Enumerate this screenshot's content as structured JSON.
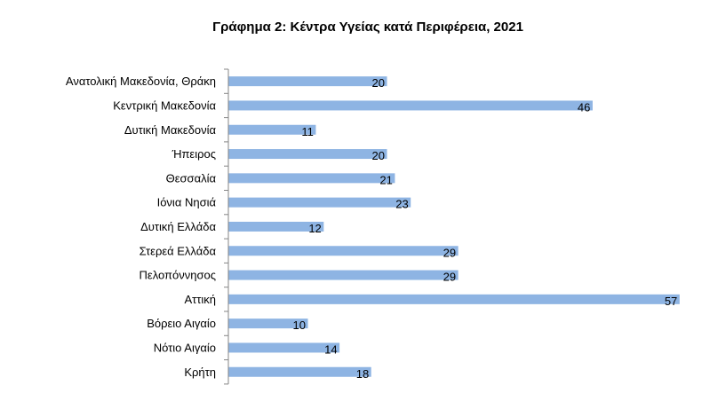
{
  "chart_data": {
    "type": "bar",
    "orientation": "horizontal",
    "title": "Γράφημα 2: Κέντρα Υγείας κατά Περιφέρεια, 2021",
    "categories": [
      "Ανατολική Μακεδονία, Θράκη",
      "Κεντρική Μακεδονία",
      "Δυτική Μακεδονία",
      "Ήπειρος",
      "Θεσσαλία",
      "Ιόνια Νησιά",
      "Δυτική Ελλάδα",
      "Στερεά Ελλάδα",
      "Πελοπόννησος",
      "Αττική",
      "Βόρειο Αιγαίο",
      "Νότιο Αιγαίο",
      "Κρήτη"
    ],
    "values": [
      20,
      46,
      11,
      20,
      21,
      23,
      12,
      29,
      29,
      57,
      10,
      14,
      18
    ],
    "data_labels": true,
    "grid": false,
    "legend": "none",
    "bar_color": "#8EB4E3"
  }
}
